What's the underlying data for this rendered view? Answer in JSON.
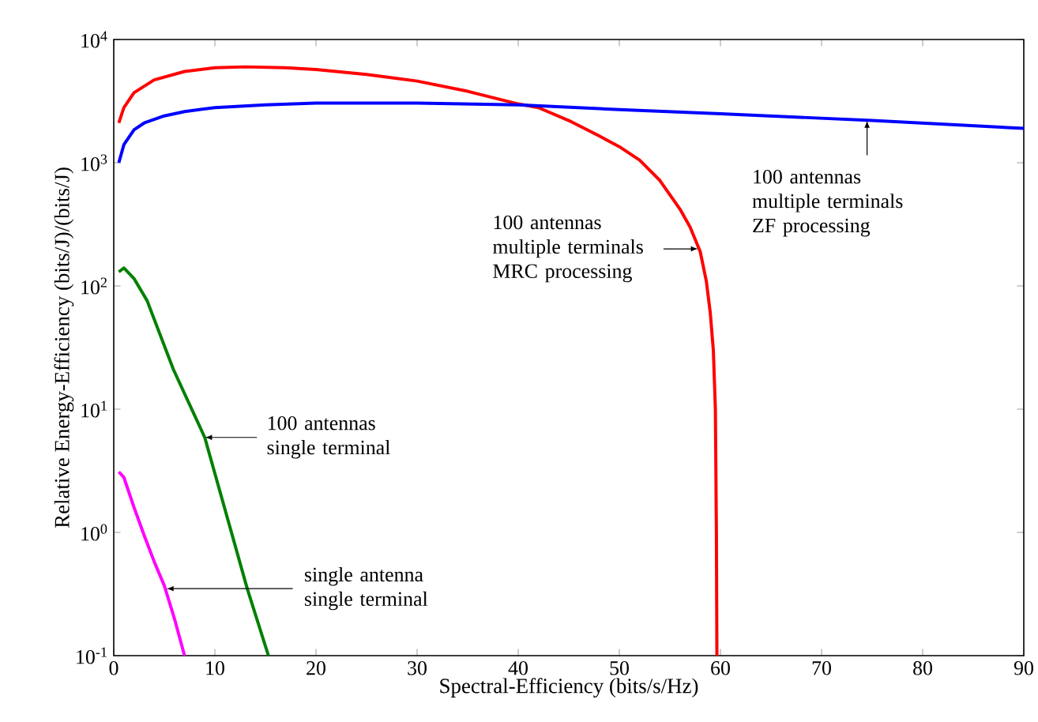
{
  "chart_data": {
    "type": "line",
    "xlabel": "Spectral-Efficiency (bits/s/Hz)",
    "ylabel": "Relative Energy-Efficiency (bits/J)/(bits/J)",
    "log": "y",
    "line_style": "solid",
    "xlim": [
      0,
      90
    ],
    "ylim": [
      0.1,
      10000
    ],
    "xticks": [
      0,
      10,
      20,
      30,
      40,
      50,
      60,
      70,
      80,
      90
    ],
    "yticks": [
      {
        "value": 0.1,
        "label": "10$^{-1}$"
      },
      {
        "value": 1,
        "label": "10$^{0}$"
      },
      {
        "value": 10,
        "label": "10$^{1}$"
      },
      {
        "value": 100,
        "label": "10$^{2}$"
      },
      {
        "value": 1000,
        "label": "10$^{3}$"
      },
      {
        "value": 10000,
        "label": "10$^{4}$"
      }
    ],
    "series": [
      {
        "color": "#ff0000",
        "x": [
          0.5,
          1,
          2,
          4,
          7,
          10,
          13,
          17,
          20,
          25,
          30,
          35,
          40,
          42,
          45,
          48,
          50,
          52,
          54,
          56,
          57,
          58,
          58.6,
          59,
          59.3,
          59.5,
          59.6,
          59.65
        ],
        "values": [
          2100,
          2800,
          3700,
          4700,
          5500,
          5900,
          6000,
          5900,
          5700,
          5200,
          4600,
          3800,
          3000,
          2800,
          2200,
          1650,
          1350,
          1050,
          720,
          420,
          300,
          190,
          110,
          60,
          30,
          10,
          1,
          0.1
        ]
      },
      {
        "color": "#0000ff",
        "x": [
          0.5,
          1,
          2,
          3,
          5,
          7,
          10,
          15,
          20,
          30,
          40,
          50,
          60,
          75,
          90
        ],
        "values": [
          1000,
          1400,
          1850,
          2100,
          2400,
          2600,
          2800,
          2950,
          3050,
          3050,
          2950,
          2700,
          2500,
          2200,
          1900
        ]
      },
      {
        "color": "#008000",
        "x": [
          0.5,
          1,
          2,
          3.3,
          5.9,
          9,
          13.2,
          15.3
        ],
        "values": [
          130,
          140,
          115,
          76,
          21,
          5.9,
          0.35,
          0.1
        ]
      },
      {
        "color": "#ff00ff",
        "x": [
          0.5,
          1,
          2,
          3,
          4,
          5,
          6,
          7
        ],
        "values": [
          3.1,
          2.8,
          1.6,
          0.95,
          0.58,
          0.37,
          0.2,
          0.1
        ]
      }
    ],
    "annotations": [
      {
        "text": "100 antennas multiple terminals MRC processing",
        "x": 57.8,
        "y": 200
      },
      {
        "text": "100 antennas multiple terminals ZF processing",
        "x": 74.5,
        "y": 2200
      },
      {
        "text": "100 antennas single terminal",
        "x": 9,
        "y": 5.9
      },
      {
        "text": "single antenna single terminal",
        "x": 5.2,
        "y": 0.35
      }
    ]
  }
}
